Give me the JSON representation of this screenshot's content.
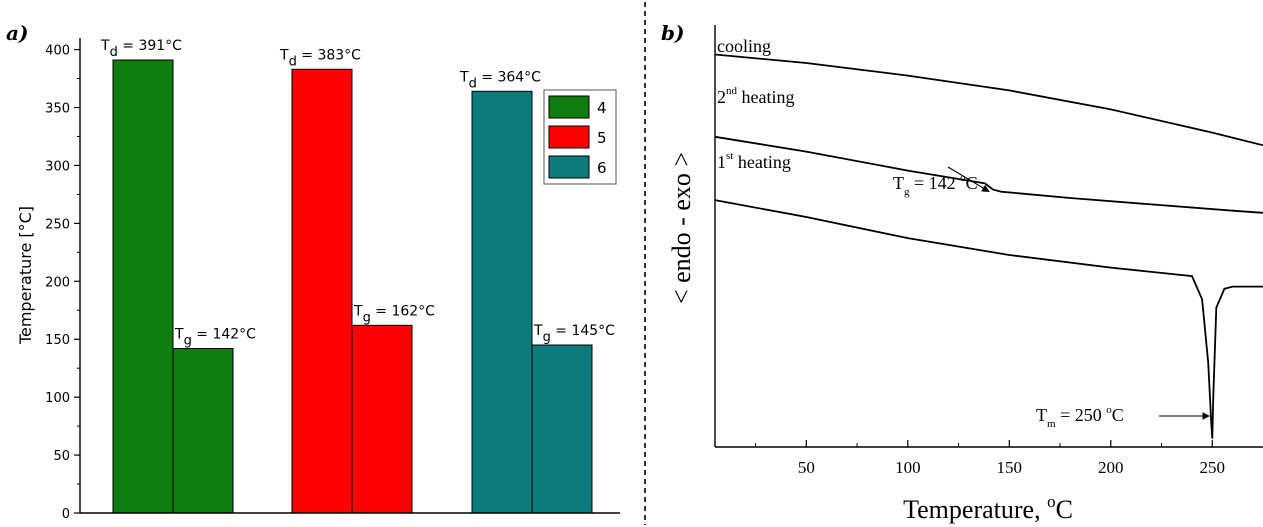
{
  "chart_data": [
    {
      "type": "bar",
      "panel_label": "a)",
      "ylabel": "Temperature [°C]",
      "ylim": [
        0,
        410
      ],
      "yticks": [
        0,
        50,
        100,
        150,
        200,
        250,
        300,
        350,
        400
      ],
      "legend_position": "top-right",
      "groups": [
        {
          "name": "4",
          "color": "#0f7d0f",
          "values": [
            391,
            142
          ],
          "labels": [
            {
              "sym": "T",
              "sub": "d",
              "val": " = 391°C"
            },
            {
              "sym": "T",
              "sub": "g",
              "val": " = 142°C"
            }
          ]
        },
        {
          "name": "5",
          "color": "#ff0000",
          "values": [
            383,
            162
          ],
          "labels": [
            {
              "sym": "T",
              "sub": "d",
              "val": " = 383°C"
            },
            {
              "sym": "T",
              "sub": "g",
              "val": " = 162°C"
            }
          ]
        },
        {
          "name": "6",
          "color": "#0b7b7d",
          "values": [
            364,
            145
          ],
          "labels": [
            {
              "sym": "T",
              "sub": "d",
              "val": " = 364°C"
            },
            {
              "sym": "T",
              "sub": "g",
              "val": " = 145°C"
            }
          ]
        }
      ]
    },
    {
      "type": "line",
      "panel_label": "b)",
      "xlabel_main": "Temperature, ",
      "xlabel_sup": "o",
      "xlabel_unit": "C",
      "ylabel": "< endo - exo >",
      "xlim": [
        5,
        275
      ],
      "xticks": [
        50,
        100,
        150,
        200,
        250
      ],
      "series": [
        {
          "label_main": "cooling",
          "label_sup": "",
          "x": [
            5,
            50,
            100,
            150,
            200,
            250,
            275
          ],
          "y": [
            0.93,
            0.91,
            0.88,
            0.845,
            0.8,
            0.745,
            0.715
          ]
        },
        {
          "label_main": "2",
          "label_sup": "nd",
          "label_tail": " heating",
          "x": [
            5,
            50,
            100,
            138,
            142,
            146,
            180,
            220,
            260,
            275
          ],
          "y": [
            0.735,
            0.7,
            0.655,
            0.625,
            0.61,
            0.605,
            0.59,
            0.575,
            0.56,
            0.555
          ]
        },
        {
          "label_main": "1",
          "label_sup": "st",
          "label_tail": " heating",
          "x": [
            5,
            50,
            100,
            150,
            200,
            240,
            245,
            248,
            249.5,
            250,
            250.5,
            252,
            256,
            260,
            265,
            275
          ],
          "y": [
            0.585,
            0.545,
            0.495,
            0.455,
            0.425,
            0.405,
            0.35,
            0.2,
            0.06,
            0.02,
            0.12,
            0.33,
            0.375,
            0.38,
            0.38,
            0.38
          ]
        }
      ],
      "annotations": [
        {
          "sym": "T",
          "sub": "g",
          "val": " = 142 ",
          "sup": "o",
          "unit": "C",
          "x": 142,
          "y": 0.61
        },
        {
          "sym": "T",
          "sub": "m",
          "val": " = 250 ",
          "sup": "o",
          "unit": "C",
          "x": 250,
          "y": 0.02
        }
      ]
    }
  ]
}
